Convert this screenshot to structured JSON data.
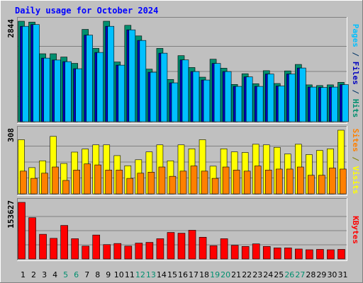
{
  "chart_data": [
    {
      "type": "bar",
      "title": "Daily usage for October 2024",
      "ymax_label": "2844",
      "ylabel_parts": [
        {
          "text": "Pages",
          "color": "#00c0ff"
        },
        {
          "text": " / ",
          "color": "#003366"
        },
        {
          "text": "Files",
          "color": "#0000c0"
        },
        {
          "text": " / ",
          "color": "#003366"
        },
        {
          "text": "Hits",
          "color": "#008f6f"
        }
      ],
      "ylim": [
        0,
        2844
      ],
      "categories": [
        "1",
        "2",
        "3",
        "4",
        "5",
        "6",
        "7",
        "8",
        "9",
        "10",
        "11",
        "12",
        "13",
        "14",
        "15",
        "16",
        "17",
        "18",
        "19",
        "20",
        "21",
        "22",
        "23",
        "24",
        "25",
        "26",
        "27",
        "28",
        "29",
        "30",
        "31"
      ],
      "series": [
        {
          "name": "Hits",
          "color": "#008f6f",
          "values": [
            2844,
            2820,
            1923,
            1923,
            1831,
            1652,
            2613,
            2075,
            2844,
            1691,
            2728,
            2428,
            1488,
            2075,
            1196,
            1870,
            1534,
            1261,
            1769,
            1514,
            1055,
            1358,
            1075,
            1444,
            1081,
            1438,
            1621,
            1043,
            1024,
            1043,
            1114
          ]
        },
        {
          "name": "Files",
          "color": "#0000c0",
          "values": [
            2700,
            2750,
            1800,
            1745,
            1700,
            1500,
            2450,
            1960,
            2700,
            1600,
            2600,
            2300,
            1400,
            1940,
            1100,
            1750,
            1420,
            1180,
            1650,
            1420,
            1000,
            1270,
            1000,
            1350,
            1010,
            1350,
            1520,
            980,
            970,
            980,
            1050
          ]
        },
        {
          "name": "Pages",
          "color": "#00c0ff",
          "values": [
            2700,
            2750,
            1800,
            1745,
            1700,
            1500,
            2450,
            1960,
            2700,
            1600,
            2600,
            2300,
            1400,
            1940,
            1100,
            1750,
            1420,
            1180,
            1650,
            1420,
            1000,
            1270,
            1000,
            1350,
            1010,
            1350,
            1520,
            980,
            970,
            980,
            1050
          ]
        }
      ]
    },
    {
      "type": "bar",
      "ymax_label": "308",
      "ylabel_parts": [
        {
          "text": "Sites",
          "color": "#ff8000"
        },
        {
          "text": " / ",
          "color": "#808000"
        },
        {
          "text": "Visits",
          "color": "#ffff00"
        }
      ],
      "ylim": [
        0,
        308
      ],
      "categories": [
        "1",
        "2",
        "3",
        "4",
        "5",
        "6",
        "7",
        "8",
        "9",
        "10",
        "11",
        "12",
        "13",
        "14",
        "15",
        "16",
        "17",
        "18",
        "19",
        "20",
        "21",
        "22",
        "23",
        "24",
        "25",
        "26",
        "27",
        "28",
        "29",
        "30",
        "31"
      ],
      "series": [
        {
          "name": "Visits",
          "color": "#ffff00",
          "values": [
            262,
            127,
            160,
            278,
            147,
            202,
            217,
            237,
            237,
            185,
            136,
            165,
            203,
            237,
            160,
            237,
            218,
            262,
            134,
            218,
            203,
            200,
            240,
            237,
            225,
            193,
            240,
            190,
            210,
            218,
            308
          ]
        },
        {
          "name": "Sites",
          "color": "#ff8000",
          "values": [
            110,
            75,
            100,
            130,
            65,
            115,
            145,
            140,
            115,
            115,
            75,
            100,
            105,
            130,
            85,
            110,
            135,
            110,
            75,
            130,
            115,
            110,
            135,
            115,
            120,
            120,
            130,
            90,
            90,
            125,
            120
          ]
        }
      ]
    },
    {
      "type": "bar",
      "ymax_label": "153627",
      "ylabel_parts": [
        {
          "text": "KBytes",
          "color": "#ff0000"
        }
      ],
      "ylim": [
        0,
        153627
      ],
      "categories": [
        "1",
        "2",
        "3",
        "4",
        "5",
        "6",
        "7",
        "8",
        "9",
        "10",
        "11",
        "12",
        "13",
        "14",
        "15",
        "16",
        "17",
        "18",
        "19",
        "20",
        "21",
        "22",
        "23",
        "24",
        "25",
        "26",
        "27",
        "28",
        "29",
        "30",
        "31"
      ],
      "series": [
        {
          "name": "KBytes",
          "color": "#ff0000",
          "values": [
            153627,
            112000,
            67000,
            56000,
            91000,
            55000,
            35000,
            65000,
            39000,
            42000,
            35000,
            43000,
            45000,
            55000,
            72000,
            70000,
            78000,
            59000,
            36000,
            55000,
            37000,
            34000,
            41000,
            34000,
            30000,
            30000,
            27000,
            25000,
            26000,
            25000,
            26000
          ]
        }
      ]
    }
  ],
  "x_labels": [
    {
      "text": "1",
      "weekend": false
    },
    {
      "text": "2",
      "weekend": false
    },
    {
      "text": "3",
      "weekend": false
    },
    {
      "text": "4",
      "weekend": false
    },
    {
      "text": "5",
      "weekend": true
    },
    {
      "text": "6",
      "weekend": true
    },
    {
      "text": "7",
      "weekend": false
    },
    {
      "text": "8",
      "weekend": false
    },
    {
      "text": "9",
      "weekend": false
    },
    {
      "text": "10",
      "weekend": false
    },
    {
      "text": "11",
      "weekend": false
    },
    {
      "text": "12",
      "weekend": true
    },
    {
      "text": "13",
      "weekend": true
    },
    {
      "text": "14",
      "weekend": false
    },
    {
      "text": "15",
      "weekend": false
    },
    {
      "text": "16",
      "weekend": false
    },
    {
      "text": "17",
      "weekend": false
    },
    {
      "text": "18",
      "weekend": false
    },
    {
      "text": "19",
      "weekend": true
    },
    {
      "text": "20",
      "weekend": true
    },
    {
      "text": "21",
      "weekend": false
    },
    {
      "text": "22",
      "weekend": false
    },
    {
      "text": "23",
      "weekend": false
    },
    {
      "text": "24",
      "weekend": false
    },
    {
      "text": "25",
      "weekend": false
    },
    {
      "text": "26",
      "weekend": true
    },
    {
      "text": "27",
      "weekend": true
    },
    {
      "text": "28",
      "weekend": false
    },
    {
      "text": "29",
      "weekend": false
    },
    {
      "text": "30",
      "weekend": false
    },
    {
      "text": "31",
      "weekend": false
    }
  ],
  "colors": {
    "background": "#c0c0c0",
    "plot_background": "#c0c0c0",
    "title": "#0000ff",
    "axis_label": "#000000",
    "weekday_label": "#000000",
    "weekend_label": "#008f6f",
    "gridline": "#808080"
  }
}
